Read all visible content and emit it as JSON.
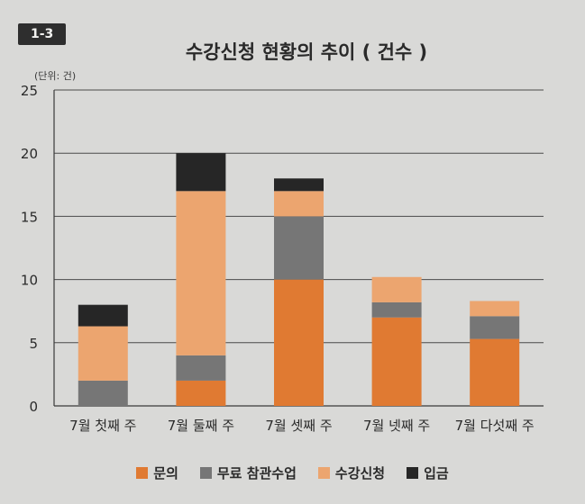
{
  "figure_label": "1-3",
  "unit_label": "(단위: 건)",
  "chart_data": {
    "type": "bar",
    "stacked": true,
    "title": "수강신청 현황의 추이 ( 건수 )",
    "xlabel": "",
    "ylabel": "",
    "categories": [
      "7월 첫째 주",
      "7월 둘째 주",
      "7월 셋째 주",
      "7월 넷째 주",
      "7월 다섯째 주"
    ],
    "series": [
      {
        "name": "문의",
        "color": "#e07a32",
        "values": [
          0,
          2,
          10,
          7,
          5.3
        ]
      },
      {
        "name": "무료 참관수업",
        "color": "#767676",
        "values": [
          2,
          2,
          5,
          1.2,
          1.8
        ]
      },
      {
        "name": "수강신청",
        "color": "#eca56f",
        "values": [
          4.3,
          13,
          2,
          2,
          1.2
        ]
      },
      {
        "name": "입금",
        "color": "#262626",
        "values": [
          1.7,
          3,
          1,
          0,
          0
        ]
      }
    ],
    "ylim": [
      0,
      25
    ],
    "yticks": [
      0,
      5,
      10,
      15,
      20,
      25
    ],
    "grid": true,
    "legend_position": "bottom"
  }
}
